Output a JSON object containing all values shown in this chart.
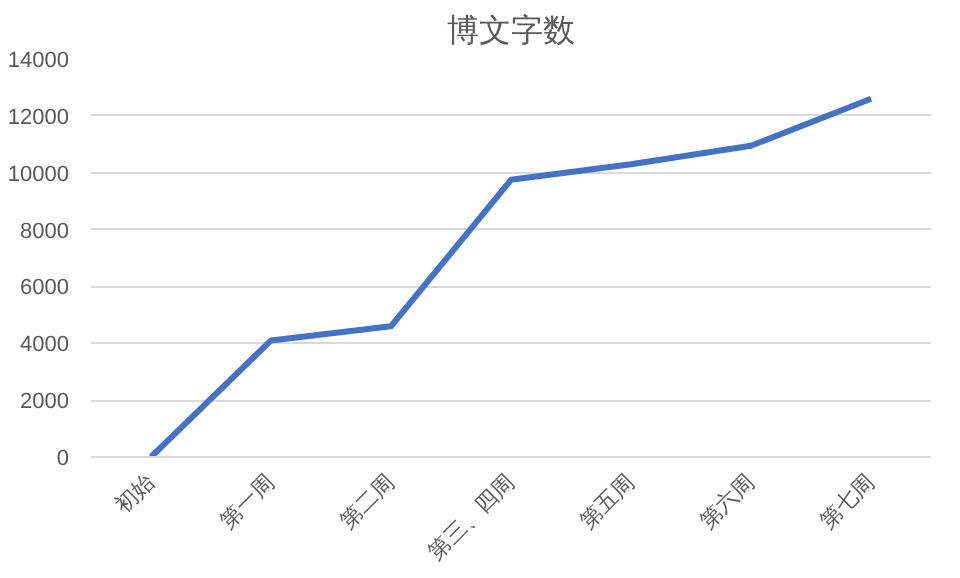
{
  "chart_data": {
    "type": "line",
    "title": "博文字数",
    "categories": [
      "初始",
      "第一周",
      "第二周",
      "第三、四周",
      "第五周",
      "第六周",
      "第七周"
    ],
    "series": [
      {
        "color": "#4472c4",
        "values": [
          0,
          4100,
          4600,
          9750,
          10300,
          10950,
          12600
        ]
      }
    ],
    "ylim": [
      0,
      14000
    ],
    "yticks": [
      0,
      2000,
      4000,
      6000,
      8000,
      10000,
      12000,
      14000
    ],
    "grid": "y",
    "marker": "none",
    "line_style": "solid"
  }
}
